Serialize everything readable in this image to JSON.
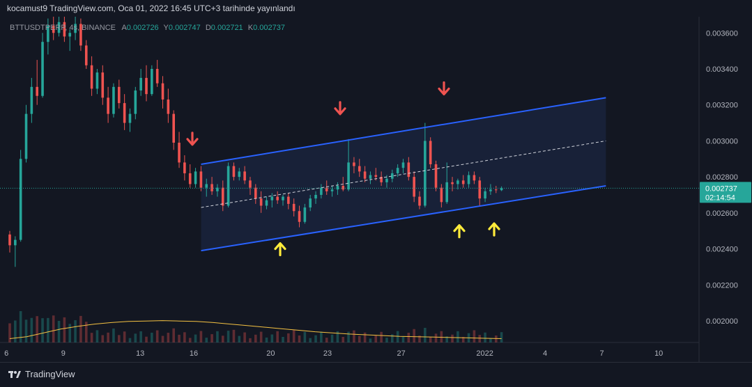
{
  "header": {
    "publish_line": "kocamust9 TradingView.com, Oca 01, 2022 16:45 UTC+3 tarihinde yayınlandı"
  },
  "legend": {
    "symbol": "BTTUSDTPERP, 4s, BINANCE",
    "open_label": "A",
    "open": "0.002726",
    "high_label": "Y",
    "high": "0.002747",
    "low_label": "D",
    "low": "0.002721",
    "close_label": "K",
    "close": "0.002737"
  },
  "price_badge": {
    "price": "0.002737",
    "countdown": "02:14:54",
    "color": "#26a69a"
  },
  "footer": {
    "brand": "TradingView",
    "logo_icon": "tradingview-logo-icon"
  },
  "colors": {
    "up": "#26a69a",
    "down": "#ef5350",
    "channel": "#2962ff",
    "channel_fill": "#1e2a4a",
    "midline": "#d1d4dc",
    "volume_ma": "#f5c242",
    "arrow_down": "#ef5350",
    "arrow_up": "#ffeb3b",
    "background": "#131722",
    "grid": "#1e222d"
  },
  "chart_data": {
    "type": "candlestick",
    "symbol": "BTTUSDTPERP",
    "interval": "4s",
    "exchange": "BINANCE",
    "x_ticks": [
      "6",
      "9",
      "13",
      "16",
      "20",
      "23",
      "27",
      "2022",
      "4",
      "7",
      "10"
    ],
    "y_ticks": [
      "0.003600",
      "0.003400",
      "0.003200",
      "0.003000",
      "0.002800",
      "0.002600",
      "0.002400",
      "0.002200",
      "0.002000"
    ],
    "ylim": [
      0.00188,
      0.00369
    ],
    "grid": false,
    "last_price": 0.002737,
    "candles": [
      [
        0.00248,
        0.0025,
        0.00238,
        0.00242
      ],
      [
        0.00242,
        0.00247,
        0.0023,
        0.00245
      ],
      [
        0.00245,
        0.00295,
        0.00244,
        0.0029
      ],
      [
        0.0029,
        0.0032,
        0.00288,
        0.00315
      ],
      [
        0.00315,
        0.00335,
        0.0031,
        0.0033
      ],
      [
        0.0033,
        0.00345,
        0.0032,
        0.00325
      ],
      [
        0.00325,
        0.0036,
        0.00324,
        0.00355
      ],
      [
        0.00355,
        0.00368,
        0.00348,
        0.00364
      ],
      [
        0.00364,
        0.0037,
        0.00356,
        0.0036
      ],
      [
        0.0036,
        0.0037,
        0.00358,
        0.00366
      ],
      [
        0.00366,
        0.00369,
        0.00355,
        0.00358
      ],
      [
        0.00358,
        0.00362,
        0.0035,
        0.0036
      ],
      [
        0.0036,
        0.0037,
        0.00356,
        0.00365
      ],
      [
        0.00365,
        0.00368,
        0.0035,
        0.00353
      ],
      [
        0.00353,
        0.00356,
        0.0034,
        0.00342
      ],
      [
        0.00342,
        0.00347,
        0.00325,
        0.00329
      ],
      [
        0.00329,
        0.0034,
        0.00326,
        0.00338
      ],
      [
        0.00338,
        0.00342,
        0.0032,
        0.00324
      ],
      [
        0.00324,
        0.0033,
        0.0031,
        0.00315
      ],
      [
        0.00315,
        0.00332,
        0.00313,
        0.0033
      ],
      [
        0.0033,
        0.00334,
        0.00318,
        0.00321
      ],
      [
        0.00321,
        0.00326,
        0.00306,
        0.0031
      ],
      [
        0.0031,
        0.00318,
        0.00305,
        0.00315
      ],
      [
        0.00315,
        0.0033,
        0.00312,
        0.00328
      ],
      [
        0.00328,
        0.0034,
        0.00325,
        0.00335
      ],
      [
        0.00335,
        0.00342,
        0.00322,
        0.00326
      ],
      [
        0.00326,
        0.00342,
        0.00325,
        0.0034
      ],
      [
        0.0034,
        0.00345,
        0.0033,
        0.00332
      ],
      [
        0.00332,
        0.00336,
        0.00318,
        0.00323
      ],
      [
        0.00323,
        0.00329,
        0.0031,
        0.00315
      ],
      [
        0.00315,
        0.00317,
        0.00295,
        0.00299
      ],
      [
        0.00299,
        0.00305,
        0.00285,
        0.00288
      ],
      [
        0.00288,
        0.00292,
        0.00278,
        0.00282
      ],
      [
        0.00282,
        0.00287,
        0.00274,
        0.00276
      ],
      [
        0.00276,
        0.00285,
        0.00274,
        0.00283
      ],
      [
        0.00283,
        0.00286,
        0.00272,
        0.00274
      ],
      [
        0.00274,
        0.00279,
        0.00269,
        0.00276
      ],
      [
        0.00276,
        0.0028,
        0.0027,
        0.00272
      ],
      [
        0.00272,
        0.00276,
        0.00269,
        0.00274
      ],
      [
        0.00274,
        0.00278,
        0.00261,
        0.00264
      ],
      [
        0.00264,
        0.00288,
        0.00263,
        0.00286
      ],
      [
        0.00286,
        0.00288,
        0.00278,
        0.0028
      ],
      [
        0.0028,
        0.00285,
        0.00278,
        0.00283
      ],
      [
        0.00283,
        0.00286,
        0.00276,
        0.00278
      ],
      [
        0.00278,
        0.0028,
        0.0027,
        0.00274
      ],
      [
        0.00274,
        0.00276,
        0.00265,
        0.00268
      ],
      [
        0.00268,
        0.00272,
        0.0026,
        0.00264
      ],
      [
        0.00264,
        0.00269,
        0.00262,
        0.00267
      ],
      [
        0.00267,
        0.00271,
        0.00263,
        0.00269
      ],
      [
        0.00269,
        0.00272,
        0.00265,
        0.00267
      ],
      [
        0.00267,
        0.0027,
        0.00264,
        0.00269
      ],
      [
        0.00269,
        0.00271,
        0.00262,
        0.00265
      ],
      [
        0.00265,
        0.00268,
        0.00258,
        0.00261
      ],
      [
        0.00261,
        0.00264,
        0.00252,
        0.00255
      ],
      [
        0.00255,
        0.00265,
        0.00254,
        0.00263
      ],
      [
        0.00263,
        0.0027,
        0.00261,
        0.00268
      ],
      [
        0.00268,
        0.00272,
        0.00265,
        0.0027
      ],
      [
        0.0027,
        0.00276,
        0.00268,
        0.00274
      ],
      [
        0.00274,
        0.00278,
        0.0027,
        0.00272
      ],
      [
        0.00272,
        0.00275,
        0.00269,
        0.00273
      ],
      [
        0.00273,
        0.00277,
        0.0027,
        0.00275
      ],
      [
        0.00275,
        0.0028,
        0.00272,
        0.00273
      ],
      [
        0.00273,
        0.00301,
        0.00272,
        0.00288
      ],
      [
        0.00288,
        0.00291,
        0.00282,
        0.00286
      ],
      [
        0.00286,
        0.0029,
        0.0028,
        0.00283
      ],
      [
        0.00283,
        0.00286,
        0.00277,
        0.00279
      ],
      [
        0.00279,
        0.00283,
        0.00276,
        0.00281
      ],
      [
        0.00281,
        0.00285,
        0.00278,
        0.0028
      ],
      [
        0.0028,
        0.00283,
        0.00275,
        0.00277
      ],
      [
        0.00277,
        0.00281,
        0.00274,
        0.00279
      ],
      [
        0.00279,
        0.00284,
        0.00277,
        0.00282
      ],
      [
        0.00282,
        0.00287,
        0.0028,
        0.00285
      ],
      [
        0.00285,
        0.0029,
        0.00282,
        0.00288
      ],
      [
        0.00288,
        0.00291,
        0.00278,
        0.0028
      ],
      [
        0.0028,
        0.00283,
        0.00266,
        0.00269
      ],
      [
        0.00269,
        0.00272,
        0.00262,
        0.00264
      ],
      [
        0.00264,
        0.0031,
        0.00263,
        0.003
      ],
      [
        0.003,
        0.00302,
        0.00285,
        0.00287
      ],
      [
        0.00287,
        0.00289,
        0.00272,
        0.00274
      ],
      [
        0.00274,
        0.00276,
        0.00263,
        0.00266
      ],
      [
        0.00266,
        0.00288,
        0.00265,
        0.00277
      ],
      [
        0.00277,
        0.0028,
        0.00272,
        0.00276
      ],
      [
        0.00276,
        0.00279,
        0.00273,
        0.00278
      ],
      [
        0.00278,
        0.00281,
        0.00274,
        0.00276
      ],
      [
        0.00276,
        0.00283,
        0.00274,
        0.00281
      ],
      [
        0.00281,
        0.00283,
        0.00276,
        0.00278
      ],
      [
        0.00278,
        0.0028,
        0.00264,
        0.00268
      ],
      [
        0.00268,
        0.00274,
        0.00266,
        0.00272
      ],
      [
        0.00272,
        0.00276,
        0.0027,
        0.00273
      ],
      [
        0.00273,
        0.00275,
        0.00271,
        0.002726
      ],
      [
        0.002726,
        0.002747,
        0.002721,
        0.002737
      ]
    ],
    "volume_ma": [
      0.1,
      0.15,
      0.25,
      0.35,
      0.42,
      0.48,
      0.52,
      0.55,
      0.56,
      0.57,
      0.56,
      0.55,
      0.52,
      0.48,
      0.44,
      0.4,
      0.36,
      0.32,
      0.28,
      0.25,
      0.22,
      0.2,
      0.18,
      0.16,
      0.15,
      0.14,
      0.13,
      0.12,
      0.11,
      0.1
    ],
    "channel": {
      "start": {
        "x_index": 40,
        "upper": 0.00287,
        "middle": 0.00263,
        "lower": 0.00239
      },
      "end": {
        "x_index": 180,
        "upper": 0.00324,
        "middle": 0.003,
        "lower": 0.00275
      }
    },
    "annotations": [
      {
        "type": "arrow-down",
        "x_index": 40,
        "price": 0.00301
      },
      {
        "type": "arrow-down",
        "x_index": 64,
        "price": 0.00318
      },
      {
        "type": "arrow-down",
        "x_index": 96,
        "price": 0.00329
      },
      {
        "type": "arrow-up",
        "x_index": 53,
        "price": 0.0024
      },
      {
        "type": "arrow-up",
        "x_index": 100,
        "price": 0.0025
      },
      {
        "type": "arrow-up",
        "x_index": 107,
        "price": 0.00251
      }
    ]
  }
}
